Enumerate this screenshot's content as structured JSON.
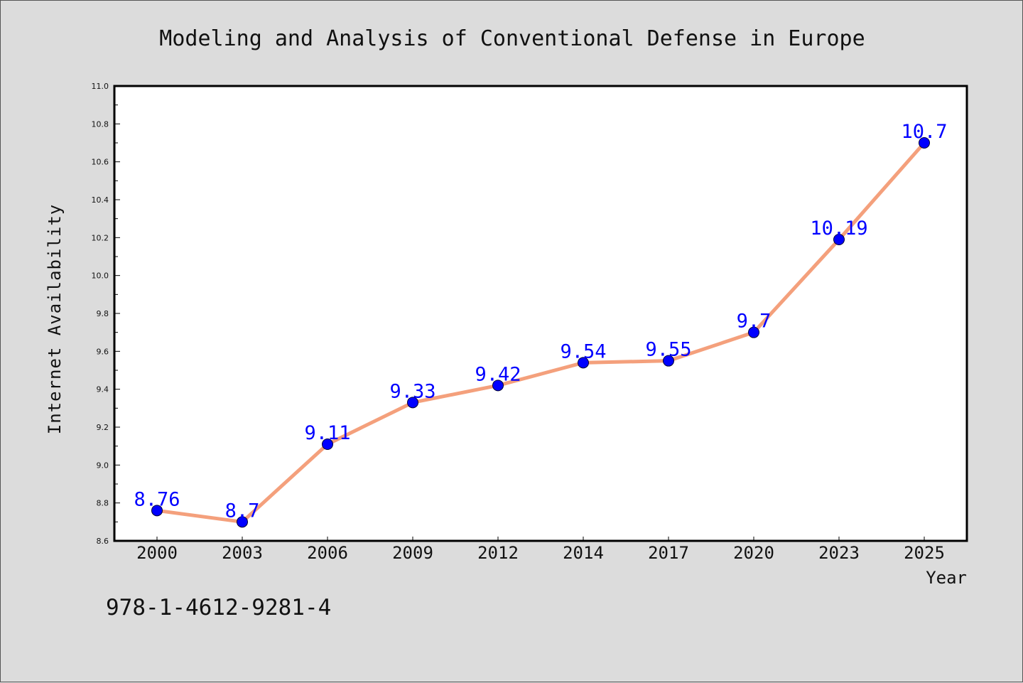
{
  "chart_data": {
    "type": "line",
    "title": "Modeling and Analysis of Conventional Defense in Europe",
    "xlabel": "Year",
    "ylabel": "Internet Availability",
    "categories": [
      "2000",
      "2003",
      "2006",
      "2009",
      "2012",
      "2014",
      "2017",
      "2020",
      "2023",
      "2025"
    ],
    "series": [
      {
        "values": [
          8.76,
          8.7,
          9.11,
          9.33,
          9.42,
          9.54,
          9.55,
          9.7,
          10.19,
          10.7
        ],
        "data_labels": [
          "8.76",
          "8.7",
          "9.11",
          "9.33",
          "9.42",
          "9.54",
          "9.55",
          "9.7",
          "10.19",
          "10.7"
        ]
      }
    ],
    "ylim": [
      8.6,
      11.0
    ],
    "yticks": [
      "8.6",
      "8.8",
      "9.0",
      "9.2",
      "9.4",
      "9.6",
      "9.8",
      "10.0",
      "10.2",
      "10.4",
      "10.6",
      "10.8",
      "11.0"
    ],
    "grid": false,
    "legend": "none",
    "colors": {
      "background": "#dcdcdc",
      "plot_background": "#ffffff",
      "line": "#f4a07c",
      "marker": "#0000ff",
      "data_label": "#0000ff"
    }
  },
  "annotation": {
    "isbn": "978-1-4612-9281-4"
  }
}
